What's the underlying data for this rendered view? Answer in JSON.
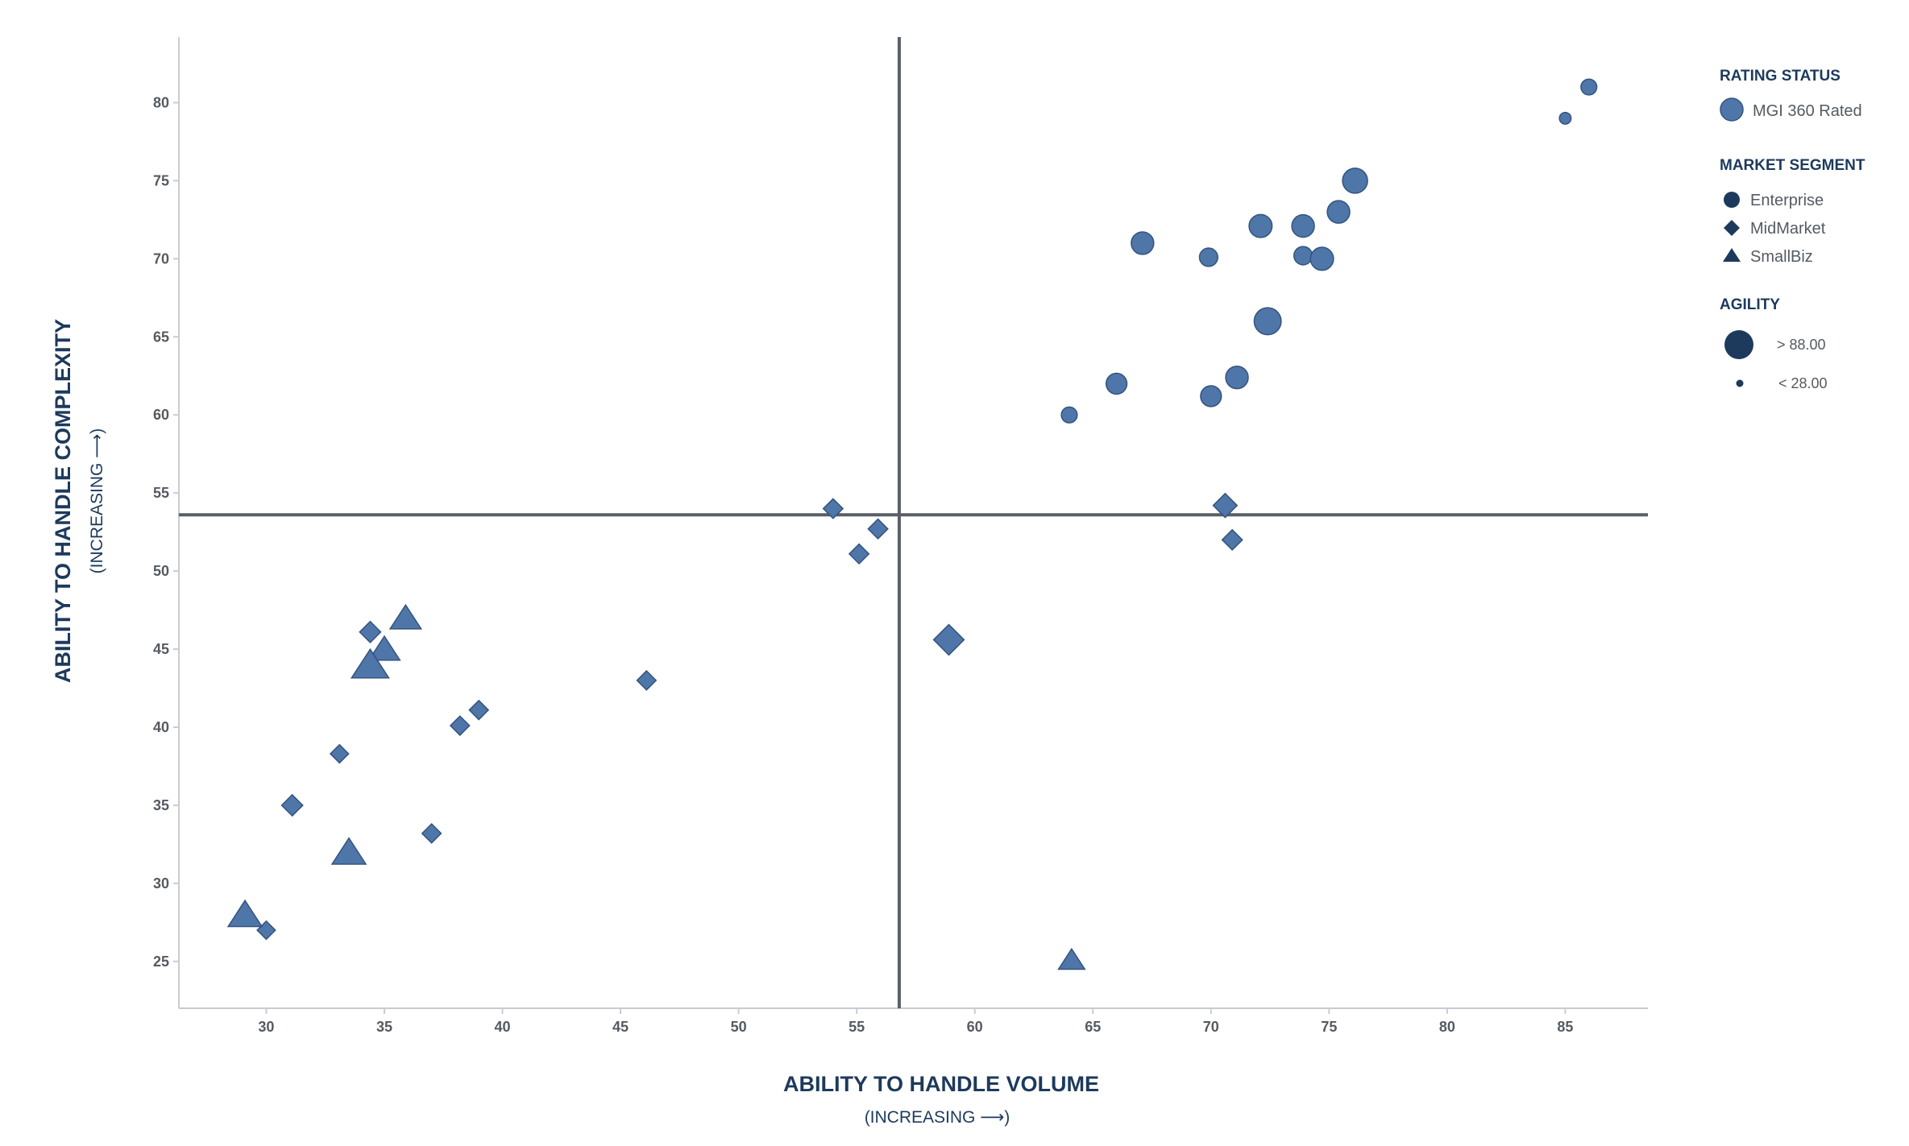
{
  "chart_data": {
    "type": "scatter",
    "title": "",
    "xlabel": "ABILITY TO HANDLE VOLUME",
    "xlabel_sub": "(INCREASING ⟶)",
    "ylabel": "ABILITY TO HANDLE COMPLEXITY",
    "ylabel_sub": "(INCREASING ⟶)",
    "xlim": [
      26.3,
      88.5
    ],
    "ylim": [
      22,
      84.2
    ],
    "xticks": [
      30,
      35,
      40,
      45,
      50,
      55,
      60,
      65,
      70,
      75,
      80,
      85
    ],
    "yticks": [
      25,
      30,
      35,
      40,
      45,
      50,
      55,
      60,
      65,
      70,
      75,
      80
    ],
    "grid": false,
    "quadrant_lines": {
      "x": 56.8,
      "y": 53.6
    },
    "legend_position": "right",
    "legend": {
      "rating_status": {
        "heading": "RATING STATUS",
        "items": [
          "MGI 360 Rated"
        ]
      },
      "market_segment": {
        "heading": "MARKET SEGMENT",
        "items": [
          {
            "label": "Enterprise",
            "marker": "circle"
          },
          {
            "label": "MidMarket",
            "marker": "diamond"
          },
          {
            "label": "SmallBiz",
            "marker": "triangle"
          }
        ]
      },
      "agility": {
        "heading": "AGILITY",
        "items": [
          "> 88.00",
          "< 28.00"
        ],
        "agility_values": [
          88,
          28
        ]
      }
    },
    "colors": {
      "marker_fill": "#4f76a8",
      "marker_stroke": "#34537e",
      "legend_marker": "#1d3a5c",
      "axis": "#c9ccd1",
      "quadrant": "#5a5e66"
    },
    "points": [
      {
        "x": 86.0,
        "y": 81.0,
        "segment": "Enterprise",
        "agility": 45
      },
      {
        "x": 85.0,
        "y": 79.0,
        "segment": "Enterprise",
        "agility": 28
      },
      {
        "x": 76.1,
        "y": 75.0,
        "segment": "Enterprise",
        "agility": 82
      },
      {
        "x": 75.4,
        "y": 73.0,
        "segment": "Enterprise",
        "agility": 72
      },
      {
        "x": 72.1,
        "y": 72.1,
        "segment": "Enterprise",
        "agility": 74
      },
      {
        "x": 73.9,
        "y": 72.1,
        "segment": "Enterprise",
        "agility": 72
      },
      {
        "x": 67.1,
        "y": 71.0,
        "segment": "Enterprise",
        "agility": 72
      },
      {
        "x": 69.9,
        "y": 70.1,
        "segment": "Enterprise",
        "agility": 55
      },
      {
        "x": 73.9,
        "y": 70.2,
        "segment": "Enterprise",
        "agility": 55
      },
      {
        "x": 74.7,
        "y": 70.0,
        "segment": "Enterprise",
        "agility": 74
      },
      {
        "x": 72.4,
        "y": 66.0,
        "segment": "Enterprise",
        "agility": 90
      },
      {
        "x": 66.0,
        "y": 62.0,
        "segment": "Enterprise",
        "agility": 65
      },
      {
        "x": 71.1,
        "y": 62.4,
        "segment": "Enterprise",
        "agility": 72
      },
      {
        "x": 70.0,
        "y": 61.2,
        "segment": "Enterprise",
        "agility": 65
      },
      {
        "x": 64.0,
        "y": 60.0,
        "segment": "Enterprise",
        "agility": 45
      },
      {
        "x": 54.0,
        "y": 54.0,
        "segment": "MidMarket",
        "agility": 50
      },
      {
        "x": 70.6,
        "y": 54.2,
        "segment": "MidMarket",
        "agility": 65
      },
      {
        "x": 55.9,
        "y": 52.7,
        "segment": "MidMarket",
        "agility": 50
      },
      {
        "x": 70.9,
        "y": 52.0,
        "segment": "MidMarket",
        "agility": 52
      },
      {
        "x": 55.1,
        "y": 51.1,
        "segment": "MidMarket",
        "agility": 50
      },
      {
        "x": 58.9,
        "y": 45.6,
        "segment": "MidMarket",
        "agility": 88
      },
      {
        "x": 34.4,
        "y": 46.1,
        "segment": "MidMarket",
        "agility": 55
      },
      {
        "x": 46.1,
        "y": 43.0,
        "segment": "MidMarket",
        "agility": 48
      },
      {
        "x": 39.0,
        "y": 41.1,
        "segment": "MidMarket",
        "agility": 48
      },
      {
        "x": 38.2,
        "y": 40.1,
        "segment": "MidMarket",
        "agility": 48
      },
      {
        "x": 33.1,
        "y": 38.3,
        "segment": "MidMarket",
        "agility": 45
      },
      {
        "x": 31.1,
        "y": 35.0,
        "segment": "MidMarket",
        "agility": 55
      },
      {
        "x": 37.0,
        "y": 33.2,
        "segment": "MidMarket",
        "agility": 48
      },
      {
        "x": 30.0,
        "y": 27.0,
        "segment": "MidMarket",
        "agility": 45
      },
      {
        "x": 35.9,
        "y": 47.0,
        "segment": "SmallBiz",
        "agility": 72
      },
      {
        "x": 35.0,
        "y": 45.0,
        "segment": "SmallBiz",
        "agility": 72
      },
      {
        "x": 34.4,
        "y": 44.0,
        "segment": "SmallBiz",
        "agility": 90
      },
      {
        "x": 33.5,
        "y": 32.0,
        "segment": "SmallBiz",
        "agility": 80
      },
      {
        "x": 29.1,
        "y": 28.0,
        "segment": "SmallBiz",
        "agility": 80
      },
      {
        "x": 64.1,
        "y": 25.1,
        "segment": "SmallBiz",
        "agility": 58
      }
    ]
  }
}
